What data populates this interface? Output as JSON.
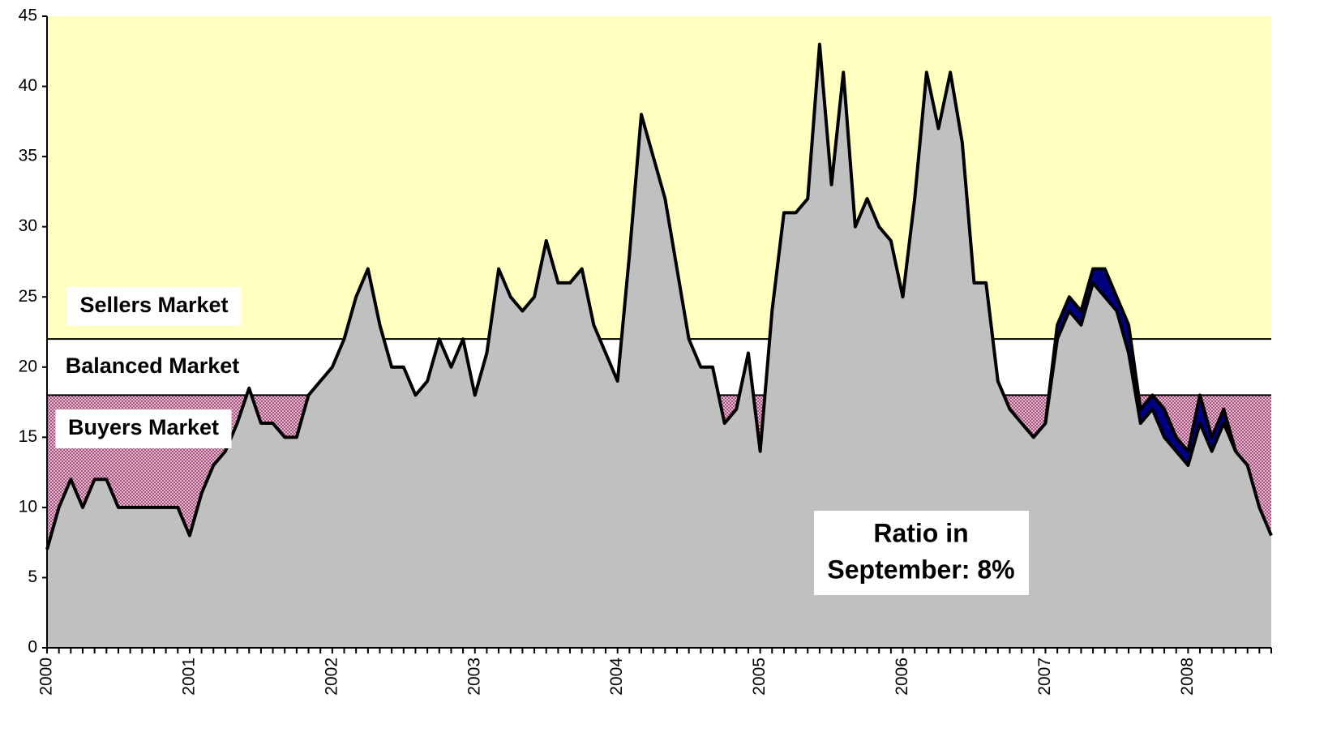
{
  "chart_data": {
    "type": "area",
    "categories": [
      "2000",
      null,
      null,
      null,
      null,
      null,
      null,
      null,
      null,
      null,
      null,
      null,
      "2001",
      null,
      null,
      null,
      null,
      null,
      null,
      null,
      null,
      null,
      null,
      null,
      "2002",
      null,
      null,
      null,
      null,
      null,
      null,
      null,
      null,
      null,
      null,
      null,
      "2003",
      null,
      null,
      null,
      null,
      null,
      null,
      null,
      null,
      null,
      null,
      null,
      "2004",
      null,
      null,
      null,
      null,
      null,
      null,
      null,
      null,
      null,
      null,
      null,
      "2005",
      null,
      null,
      null,
      null,
      null,
      null,
      null,
      null,
      null,
      null,
      null,
      "2006",
      null,
      null,
      null,
      null,
      null,
      null,
      null,
      null,
      null,
      null,
      null,
      "2007",
      null,
      null,
      null,
      null,
      null,
      null,
      null,
      null,
      null,
      null,
      null,
      "2008",
      null,
      null,
      null,
      null,
      null,
      null,
      null
    ],
    "series": [
      {
        "color": "#000080",
        "values": [
          null,
          null,
          null,
          null,
          null,
          null,
          null,
          null,
          null,
          null,
          null,
          null,
          null,
          null,
          null,
          null,
          null,
          null,
          null,
          null,
          null,
          null,
          null,
          null,
          null,
          null,
          null,
          null,
          null,
          null,
          null,
          null,
          null,
          null,
          null,
          null,
          null,
          null,
          null,
          null,
          null,
          null,
          null,
          null,
          null,
          null,
          null,
          null,
          null,
          null,
          null,
          null,
          null,
          null,
          null,
          null,
          null,
          null,
          null,
          null,
          null,
          null,
          null,
          null,
          null,
          null,
          null,
          null,
          null,
          null,
          null,
          null,
          null,
          null,
          null,
          null,
          null,
          null,
          null,
          null,
          null,
          null,
          null,
          null,
          16,
          23,
          25,
          24,
          27,
          27,
          25,
          23,
          17,
          18,
          17,
          15,
          14,
          18,
          15,
          17,
          14,
          null,
          null,
          null
        ]
      },
      {
        "color": "#c0c0c0",
        "values": [
          7,
          10,
          12,
          10,
          12,
          12,
          10,
          10,
          10,
          10,
          10,
          10,
          8,
          11,
          13,
          14,
          16,
          18.5,
          16,
          16,
          15,
          15,
          18,
          19,
          20,
          22,
          25,
          27,
          23,
          20,
          20,
          18,
          19,
          22,
          20,
          22,
          18,
          21,
          27,
          25,
          24,
          25,
          29,
          26,
          26,
          27,
          23,
          21,
          19,
          28,
          38,
          35,
          32,
          27,
          22,
          20,
          20,
          16,
          17,
          21,
          14,
          24,
          31,
          31,
          32,
          43,
          33,
          41,
          30,
          32,
          30,
          29,
          25,
          32,
          41,
          37,
          41,
          36,
          26,
          26,
          19,
          17,
          16,
          15,
          16,
          22,
          24,
          23,
          26,
          25,
          24,
          21,
          16,
          17,
          15,
          14,
          13,
          16,
          14,
          16,
          14,
          13,
          10,
          8
        ]
      }
    ],
    "bands": [
      {
        "label": "Sellers Market",
        "from": 22,
        "to": 45,
        "color": "#ffffc0"
      },
      {
        "label": "Balanced Market",
        "from": 18,
        "to": 22,
        "color": "#ffffff"
      },
      {
        "label": "Buyers Market",
        "from": 0,
        "to": 18,
        "color": "#993366",
        "pattern": "dotted"
      }
    ],
    "annotation": [
      "Ratio in",
      "September: 8%"
    ],
    "ylim": [
      0,
      45
    ],
    "yticks": [
      0,
      5,
      10,
      15,
      20,
      25,
      30,
      35,
      40,
      45
    ]
  }
}
